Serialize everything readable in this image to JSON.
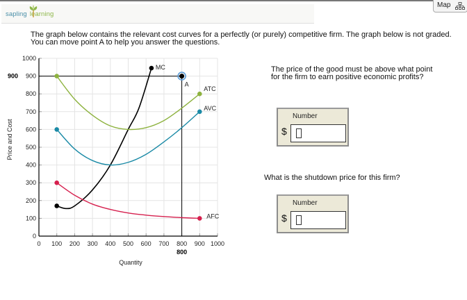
{
  "header": {
    "logo_part1": "sapling",
    "logo_part2": "learning",
    "map_label": "Map"
  },
  "intro_text": "The graph below contains the relevant cost curves for a perfectly (or purely) competitive firm. The graph below is not graded. You can move point A to help you answer the questions.",
  "questions": [
    {
      "text": "The price of the good must be above what point for the firm to earn positive economic profits?",
      "input_label": "Number",
      "currency": "$",
      "value": ""
    },
    {
      "text": "What is the shutdown price for this firm?",
      "input_label": "Number",
      "currency": "$",
      "value": ""
    }
  ],
  "chart_data": {
    "type": "line",
    "title": "",
    "xlabel": "Quantity",
    "ylabel": "Price and Cost",
    "xlim": [
      0,
      1000
    ],
    "ylim": [
      0,
      1000
    ],
    "grid": true,
    "x_ticks": [
      "0",
      "100",
      "200",
      "300",
      "400",
      "500",
      "600",
      "700",
      "800",
      "900",
      "1000"
    ],
    "y_ticks": [
      "0",
      "100",
      "200",
      "300",
      "400",
      "500",
      "600",
      "700",
      "800",
      "900",
      "1000"
    ],
    "series": [
      {
        "name": "MC",
        "color": "#000000",
        "points": [
          [
            100,
            170
          ],
          [
            150,
            155
          ],
          [
            200,
            170
          ],
          [
            300,
            260
          ],
          [
            400,
            400
          ],
          [
            500,
            600
          ],
          [
            560,
            720
          ],
          [
            630,
            945
          ]
        ]
      },
      {
        "name": "ATC",
        "color": "#8db23e",
        "points": [
          [
            100,
            900
          ],
          [
            200,
            770
          ],
          [
            300,
            680
          ],
          [
            400,
            620
          ],
          [
            500,
            600
          ],
          [
            600,
            610
          ],
          [
            700,
            650
          ],
          [
            800,
            720
          ],
          [
            900,
            800
          ]
        ]
      },
      {
        "name": "AVC",
        "color": "#1a8aa6",
        "points": [
          [
            100,
            600
          ],
          [
            200,
            490
          ],
          [
            300,
            425
          ],
          [
            400,
            400
          ],
          [
            500,
            415
          ],
          [
            600,
            460
          ],
          [
            700,
            530
          ],
          [
            800,
            610
          ],
          [
            900,
            700
          ]
        ]
      },
      {
        "name": "AFC",
        "color": "#d6204e",
        "points": [
          [
            100,
            300
          ],
          [
            200,
            230
          ],
          [
            300,
            180
          ],
          [
            400,
            150
          ],
          [
            500,
            130
          ],
          [
            600,
            118
          ],
          [
            700,
            110
          ],
          [
            800,
            104
          ],
          [
            900,
            100
          ]
        ]
      }
    ],
    "point_A": {
      "label": "A",
      "x": 800,
      "y": 900,
      "x_marker": "800",
      "y_marker": "900"
    }
  }
}
